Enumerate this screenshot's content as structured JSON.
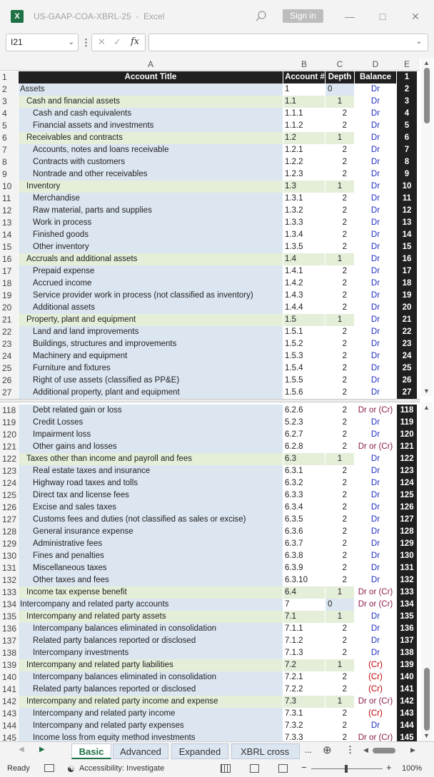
{
  "window": {
    "title": "US-GAAP-COA-XBRL-25  -  Excel",
    "sign_in": "Sign in"
  },
  "formula_bar": {
    "name_box": "I21",
    "fx": "fx",
    "value": ""
  },
  "columns": [
    "A",
    "B",
    "C",
    "D",
    "E"
  ],
  "header": {
    "row": "1",
    "title": "Account Title",
    "account": "Account #",
    "depth": "Depth",
    "balance": "Balance",
    "e": "1"
  },
  "rows_top": [
    {
      "n": "2",
      "title": "Assets",
      "acct": "1",
      "depth": "0",
      "bal": "Dr",
      "lvl": 0,
      "e": "2"
    },
    {
      "n": "3",
      "title": "Cash and financial assets",
      "acct": "1.1",
      "depth": "1",
      "bal": "Dr",
      "lvl": 1,
      "e": "3"
    },
    {
      "n": "4",
      "title": "Cash and cash equivalents",
      "acct": "1.1.1",
      "depth": "2",
      "bal": "Dr",
      "lvl": 2,
      "e": "4"
    },
    {
      "n": "5",
      "title": "Financial assets and investments",
      "acct": "1.1.2",
      "depth": "2",
      "bal": "Dr",
      "lvl": 2,
      "e": "5"
    },
    {
      "n": "6",
      "title": "Receivables and contracts",
      "acct": "1.2",
      "depth": "1",
      "bal": "Dr",
      "lvl": 1,
      "e": "6"
    },
    {
      "n": "7",
      "title": "Accounts, notes and loans receivable",
      "acct": "1.2.1",
      "depth": "2",
      "bal": "Dr",
      "lvl": 2,
      "e": "7"
    },
    {
      "n": "8",
      "title": "Contracts with customers",
      "acct": "1.2.2",
      "depth": "2",
      "bal": "Dr",
      "lvl": 2,
      "e": "8"
    },
    {
      "n": "9",
      "title": "Nontrade and other receivables",
      "acct": "1.2.3",
      "depth": "2",
      "bal": "Dr",
      "lvl": 2,
      "e": "9"
    },
    {
      "n": "10",
      "title": "Inventory",
      "acct": "1.3",
      "depth": "1",
      "bal": "Dr",
      "lvl": 1,
      "e": "10"
    },
    {
      "n": "11",
      "title": "Merchandise",
      "acct": "1.3.1",
      "depth": "2",
      "bal": "Dr",
      "lvl": 2,
      "e": "11"
    },
    {
      "n": "12",
      "title": "Raw material, parts and supplies",
      "acct": "1.3.2",
      "depth": "2",
      "bal": "Dr",
      "lvl": 2,
      "e": "12"
    },
    {
      "n": "13",
      "title": "Work in process",
      "acct": "1.3.3",
      "depth": "2",
      "bal": "Dr",
      "lvl": 2,
      "e": "13"
    },
    {
      "n": "14",
      "title": "Finished goods",
      "acct": "1.3.4",
      "depth": "2",
      "bal": "Dr",
      "lvl": 2,
      "e": "14"
    },
    {
      "n": "15",
      "title": "Other inventory",
      "acct": "1.3.5",
      "depth": "2",
      "bal": "Dr",
      "lvl": 2,
      "e": "15"
    },
    {
      "n": "16",
      "title": "Accruals and additional assets",
      "acct": "1.4",
      "depth": "1",
      "bal": "Dr",
      "lvl": 1,
      "e": "16"
    },
    {
      "n": "17",
      "title": "Prepaid expense",
      "acct": "1.4.1",
      "depth": "2",
      "bal": "Dr",
      "lvl": 2,
      "e": "17"
    },
    {
      "n": "18",
      "title": "Accrued income",
      "acct": "1.4.2",
      "depth": "2",
      "bal": "Dr",
      "lvl": 2,
      "e": "18"
    },
    {
      "n": "19",
      "title": "Service provider work in process (not classified as inventory)",
      "acct": "1.4.3",
      "depth": "2",
      "bal": "Dr",
      "lvl": 2,
      "e": "19"
    },
    {
      "n": "20",
      "title": "Additional assets",
      "acct": "1.4.4",
      "depth": "2",
      "bal": "Dr",
      "lvl": 2,
      "e": "20"
    },
    {
      "n": "21",
      "title": "Property, plant and equipment",
      "acct": "1.5",
      "depth": "1",
      "bal": "Dr",
      "lvl": 1,
      "e": "21"
    },
    {
      "n": "22",
      "title": "Land and land improvements",
      "acct": "1.5.1",
      "depth": "2",
      "bal": "Dr",
      "lvl": 2,
      "e": "22"
    },
    {
      "n": "23",
      "title": "Buildings, structures and improvements",
      "acct": "1.5.2",
      "depth": "2",
      "bal": "Dr",
      "lvl": 2,
      "e": "23"
    },
    {
      "n": "24",
      "title": "Machinery and equipment",
      "acct": "1.5.3",
      "depth": "2",
      "bal": "Dr",
      "lvl": 2,
      "e": "24"
    },
    {
      "n": "25",
      "title": "Furniture and fixtures",
      "acct": "1.5.4",
      "depth": "2",
      "bal": "Dr",
      "lvl": 2,
      "e": "25"
    },
    {
      "n": "26",
      "title": "Right of use assets (classified as PP&E)",
      "acct": "1.5.5",
      "depth": "2",
      "bal": "Dr",
      "lvl": 2,
      "e": "26"
    },
    {
      "n": "27",
      "title": "Additional property, plant and equipment",
      "acct": "1.5.6",
      "depth": "2",
      "bal": "Dr",
      "lvl": 2,
      "e": "27"
    }
  ],
  "rows_bottom": [
    {
      "n": "118",
      "title": "Debt related gain or loss",
      "acct": "6.2.6",
      "depth": "2",
      "bal": "Dr or (Cr)",
      "lvl": 2,
      "e": "118"
    },
    {
      "n": "119",
      "title": "Credit Losses",
      "acct": "5.2.3",
      "depth": "2",
      "bal": "Dr",
      "lvl": 2,
      "e": "119"
    },
    {
      "n": "120",
      "title": "Impairment loss",
      "acct": "6.2.7",
      "depth": "2",
      "bal": "Dr",
      "lvl": 2,
      "e": "120"
    },
    {
      "n": "121",
      "title": "Other gains and losses",
      "acct": "6.2.8",
      "depth": "2",
      "bal": "Dr or (Cr)",
      "lvl": 2,
      "e": "121"
    },
    {
      "n": "122",
      "title": "Taxes other than income and payroll and fees",
      "acct": "6.3",
      "depth": "1",
      "bal": "Dr",
      "lvl": 1,
      "e": "122"
    },
    {
      "n": "123",
      "title": "Real estate taxes and insurance",
      "acct": "6.3.1",
      "depth": "2",
      "bal": "Dr",
      "lvl": 2,
      "e": "123"
    },
    {
      "n": "124",
      "title": "Highway road taxes and tolls",
      "acct": "6.3.2",
      "depth": "2",
      "bal": "Dr",
      "lvl": 2,
      "e": "124"
    },
    {
      "n": "125",
      "title": "Direct tax and license fees",
      "acct": "6.3.3",
      "depth": "2",
      "bal": "Dr",
      "lvl": 2,
      "e": "125"
    },
    {
      "n": "126",
      "title": "Excise and sales taxes",
      "acct": "6.3.4",
      "depth": "2",
      "bal": "Dr",
      "lvl": 2,
      "e": "126"
    },
    {
      "n": "127",
      "title": "Customs fees and duties (not classified as sales or excise)",
      "acct": "6.3.5",
      "depth": "2",
      "bal": "Dr",
      "lvl": 2,
      "e": "127"
    },
    {
      "n": "128",
      "title": "General insurance expense",
      "acct": "6.3.6",
      "depth": "2",
      "bal": "Dr",
      "lvl": 2,
      "e": "128"
    },
    {
      "n": "129",
      "title": "Administrative fees",
      "acct": "6.3.7",
      "depth": "2",
      "bal": "Dr",
      "lvl": 2,
      "e": "129"
    },
    {
      "n": "130",
      "title": "Fines and penalties",
      "acct": "6.3.8",
      "depth": "2",
      "bal": "Dr",
      "lvl": 2,
      "e": "130"
    },
    {
      "n": "131",
      "title": "Miscellaneous taxes",
      "acct": "6.3.9",
      "depth": "2",
      "bal": "Dr",
      "lvl": 2,
      "e": "131"
    },
    {
      "n": "132",
      "title": "Other taxes and fees",
      "acct": "6.3.10",
      "depth": "2",
      "bal": "Dr",
      "lvl": 2,
      "e": "132"
    },
    {
      "n": "133",
      "title": "Income tax expense benefit",
      "acct": "6.4",
      "depth": "1",
      "bal": "Dr or (Cr)",
      "lvl": 1,
      "e": "133"
    },
    {
      "n": "134",
      "title": "Intercompany and related party accounts",
      "acct": "7",
      "depth": "0",
      "bal": "Dr or (Cr)",
      "lvl": 0,
      "e": "134"
    },
    {
      "n": "135",
      "title": "Intercompany and related party assets",
      "acct": "7.1",
      "depth": "1",
      "bal": "Dr",
      "lvl": 1,
      "e": "135"
    },
    {
      "n": "136",
      "title": "Intercompany balances eliminated in consolidation",
      "acct": "7.1.1",
      "depth": "2",
      "bal": "Dr",
      "lvl": 2,
      "e": "136"
    },
    {
      "n": "137",
      "title": "Related party balances reported or disclosed",
      "acct": "7.1.2",
      "depth": "2",
      "bal": "Dr",
      "lvl": 2,
      "e": "137"
    },
    {
      "n": "138",
      "title": "Intercompany investments",
      "acct": "7.1.3",
      "depth": "2",
      "bal": "Dr",
      "lvl": 2,
      "e": "138"
    },
    {
      "n": "139",
      "title": "Intercompany and related party liabilities",
      "acct": "7.2",
      "depth": "1",
      "bal": "(Cr)",
      "lvl": 1,
      "e": "139"
    },
    {
      "n": "140",
      "title": "Intercompany balances eliminated in consolidation",
      "acct": "7.2.1",
      "depth": "2",
      "bal": "(Cr)",
      "lvl": 2,
      "e": "140"
    },
    {
      "n": "141",
      "title": "Related party balances reported or disclosed",
      "acct": "7.2.2",
      "depth": "2",
      "bal": "(Cr)",
      "lvl": 2,
      "e": "141"
    },
    {
      "n": "142",
      "title": "Intercompany and related party income and expense",
      "acct": "7.3",
      "depth": "1",
      "bal": "Dr or (Cr)",
      "lvl": 1,
      "e": "142"
    },
    {
      "n": "143",
      "title": "Intercompany and related party income",
      "acct": "7.3.1",
      "depth": "2",
      "bal": "(Cr)",
      "lvl": 2,
      "e": "143"
    },
    {
      "n": "144",
      "title": "Intercompany and related party expenses",
      "acct": "7.3.2",
      "depth": "2",
      "bal": "Dr",
      "lvl": 2,
      "e": "144"
    },
    {
      "n": "145",
      "title": "Income loss from equity method investments",
      "acct": "7.3.3",
      "depth": "2",
      "bal": "Dr or (Cr)",
      "lvl": 2,
      "e": "145"
    }
  ],
  "tabs": [
    "Basic",
    "Advanced",
    "Expanded",
    "XBRL cross ref"
  ],
  "tab_more": "...",
  "status": {
    "ready": "Ready",
    "accessibility": "Accessibility: Investigate",
    "zoom": "100%"
  },
  "colors": {
    "brand": "#1e7145",
    "header": "#202020",
    "dr": "#1f2fbf",
    "cr": "#c00000",
    "lvl1": "#e4eed9",
    "lvl2": "#dce6f1"
  }
}
